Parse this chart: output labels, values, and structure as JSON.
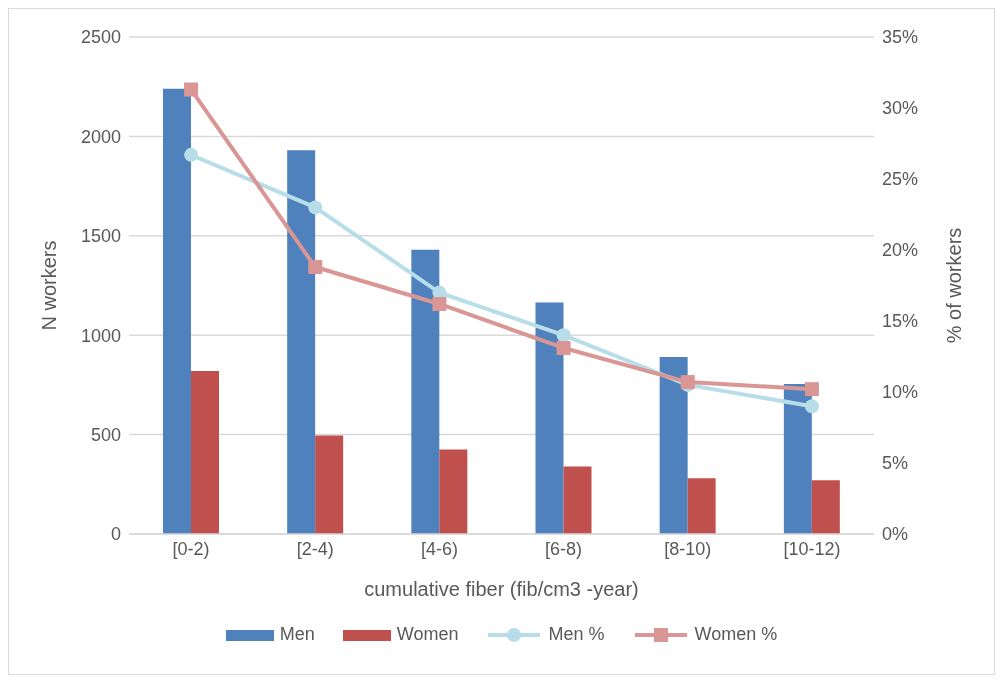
{
  "chart_data": {
    "type": "bar",
    "xlabel": "cumulative fiber (fib/cm3 -year)",
    "ylabel": "N workers",
    "y2label": "% of workers",
    "categories": [
      "[0-2)",
      "[2-4)",
      "[4-6)",
      "[6-8)",
      "[8-10)",
      "[10-12)"
    ],
    "series": [
      {
        "name": "Men",
        "color": "#4f81bd",
        "values": [
          2240,
          1930,
          1430,
          1165,
          890,
          755
        ]
      },
      {
        "name": "Women",
        "color": "#c0504d",
        "values": [
          820,
          495,
          425,
          340,
          280,
          270
        ]
      },
      {
        "name": "Men %",
        "type": "line",
        "axis": "y2",
        "marker": "circle",
        "color": "#b7dee8",
        "values": [
          26.7,
          23.0,
          17.0,
          14.0,
          10.5,
          9.0
        ]
      },
      {
        "name": "Women %",
        "type": "line",
        "axis": "y2",
        "marker": "square",
        "color": "#d99694",
        "values": [
          31.3,
          18.8,
          16.2,
          13.1,
          10.7,
          10.2
        ]
      }
    ],
    "ylim": [
      0,
      2500
    ],
    "yticks": [
      0,
      500,
      1000,
      1500,
      2000,
      2500
    ],
    "y2lim": [
      0,
      35
    ],
    "y2ticks": [
      {
        "value": 0,
        "label": "0%"
      },
      {
        "value": 5,
        "label": "5%"
      },
      {
        "value": 10,
        "label": "10%"
      },
      {
        "value": 15,
        "label": "15%"
      },
      {
        "value": 20,
        "label": "20%"
      },
      {
        "value": 25,
        "label": "25%"
      },
      {
        "value": 30,
        "label": "30%"
      },
      {
        "value": 35,
        "label": "35%"
      }
    ],
    "grid": "y",
    "legend": "bottom"
  }
}
